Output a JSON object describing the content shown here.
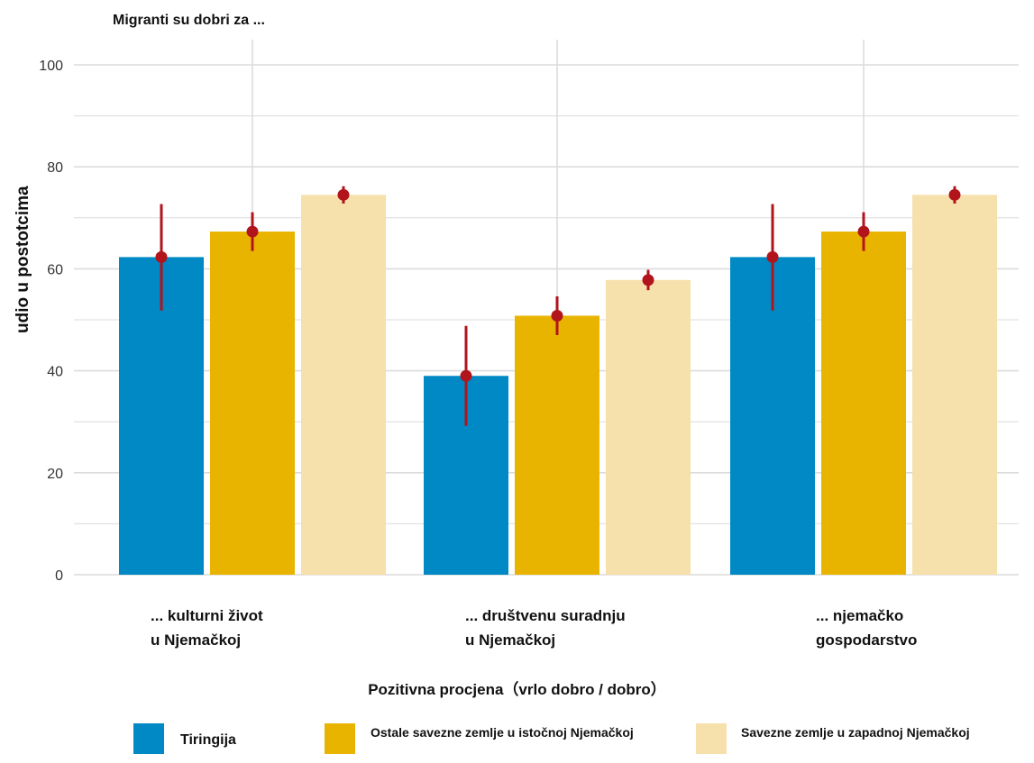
{
  "chart_data": {
    "type": "bar",
    "title": "Migranti su dobri za ...",
    "xlabel": "Pozitivna procjena（vrlo dobro / dobro）",
    "ylabel": "udio u postotcima",
    "ylim": [
      0,
      100
    ],
    "yticks": [
      0,
      20,
      40,
      60,
      80,
      100
    ],
    "grid": true,
    "legend_position": "bottom",
    "categories": [
      [
        "... kulturni život",
        "u Njemačkoj"
      ],
      [
        "... društvenu suradnju",
        "u Njemačkoj"
      ],
      [
        "... njemačko",
        "gospodarstvo"
      ]
    ],
    "series": [
      {
        "name": "Tiringija",
        "color": "#0089c4",
        "values": [
          62.3,
          39.0,
          62.3
        ],
        "ci_low": [
          51.8,
          29.2,
          51.8
        ],
        "ci_high": [
          72.7,
          48.8,
          72.7
        ]
      },
      {
        "name": "Ostale savezne zemlje u istočnoj Njemačkoj",
        "color": "#e8b400",
        "values": [
          67.3,
          50.8,
          67.3
        ],
        "ci_low": [
          63.5,
          47.0,
          63.5
        ],
        "ci_high": [
          71.1,
          54.6,
          71.1
        ]
      },
      {
        "name": "Savezne zemlje u zapadnoj Njemačkoj",
        "color": "#f6e0ab",
        "values": [
          74.5,
          57.8,
          74.5
        ],
        "ci_low": [
          72.8,
          55.8,
          72.8
        ],
        "ci_high": [
          76.2,
          59.8,
          76.2
        ]
      }
    ],
    "point_color": "#b2141c"
  }
}
